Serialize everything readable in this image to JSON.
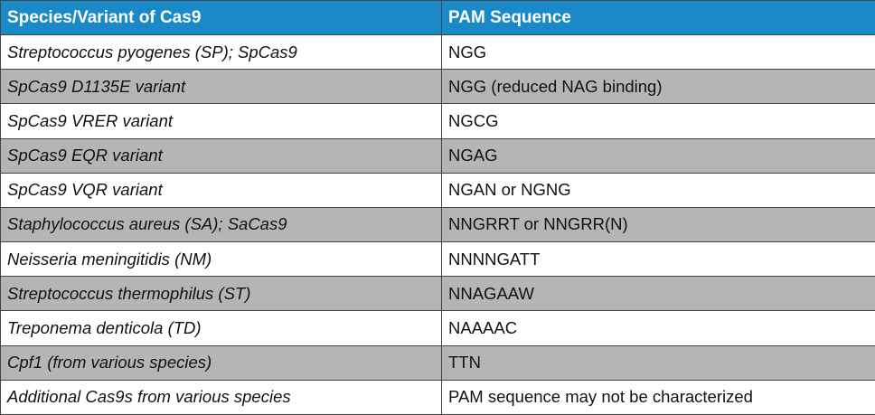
{
  "table": {
    "headers": [
      "Species/Variant of Cas9",
      "PAM Sequence"
    ],
    "rows": [
      {
        "species": "Streptococcus pyogenes (SP); SpCas9",
        "pam": "NGG"
      },
      {
        "species": "SpCas9 D1135E variant",
        "pam": "NGG (reduced NAG binding)"
      },
      {
        "species": "SpCas9 VRER variant",
        "pam": "NGCG"
      },
      {
        "species": "SpCas9 EQR variant",
        "pam": "NGAG"
      },
      {
        "species": "SpCas9 VQR variant",
        "pam": "NGAN or NGNG"
      },
      {
        "species": "Staphylococcus aureus (SA); SaCas9",
        "pam": "NNGRRT or NNGRR(N)"
      },
      {
        "species": "Neisseria meningitidis (NM)",
        "pam": "NNNNGATT"
      },
      {
        "species": "Streptococcus thermophilus (ST)",
        "pam": "NNAGAAW"
      },
      {
        "species": "Treponema denticola (TD)",
        "pam": "NAAAAC"
      },
      {
        "species": "Cpf1 (from various species)",
        "pam": "TTN"
      },
      {
        "species": "Additional Cas9s from various species",
        "pam": "PAM sequence may not be characterized"
      }
    ]
  },
  "colors": {
    "header_bg": "#1a89c8",
    "header_text": "#ffffff",
    "shaded_row": "#b5b5b5",
    "plain_row": "#ffffff",
    "border": "#444444"
  }
}
